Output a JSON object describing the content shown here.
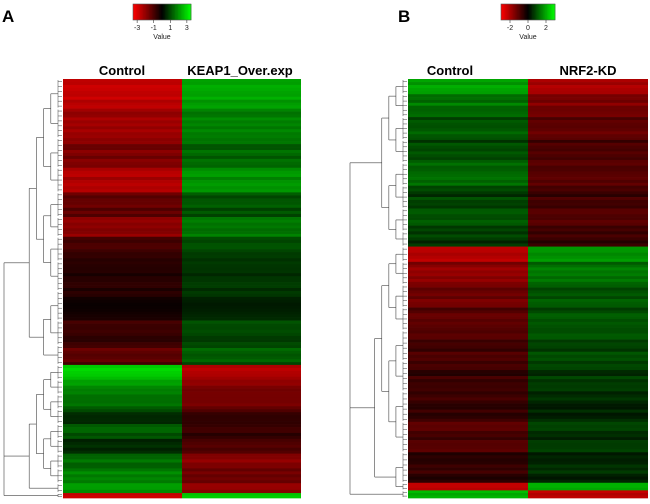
{
  "chart_data": [
    {
      "type": "heatmap",
      "panel": "A",
      "columns": [
        "Control",
        "KEAP1_Over.exp"
      ],
      "colorbar": {
        "title": "Value",
        "ticks": [
          "-3",
          "-1",
          "1",
          "3"
        ],
        "tick_values": [
          -3,
          -1,
          1,
          3
        ],
        "range": [
          -3.5,
          3.5
        ],
        "colors": {
          "low": "#ff0000",
          "mid": "#000000",
          "high": "#00ff00"
        }
      },
      "clusters": [
        {
          "control": -2.6,
          "treated": 2.2,
          "weight": 6
        },
        {
          "control": -2.1,
          "treated": 1.7,
          "weight": 6
        },
        {
          "control": -1.7,
          "treated": 1.4,
          "weight": 6
        },
        {
          "control": -2.4,
          "treated": 2.0,
          "weight": 5
        },
        {
          "control": -1.3,
          "treated": 1.1,
          "weight": 5
        },
        {
          "control": -1.9,
          "treated": 1.6,
          "weight": 4
        },
        {
          "control": -0.8,
          "treated": 0.9,
          "weight": 5
        },
        {
          "control": -0.5,
          "treated": 0.7,
          "weight": 6
        },
        {
          "control": -0.4,
          "treated": 0.6,
          "weight": 6
        },
        {
          "control": -0.7,
          "treated": 0.9,
          "weight": 5
        },
        {
          "control": -1.2,
          "treated": 1.2,
          "weight": 4
        },
        {
          "control": 2.8,
          "treated": -2.4,
          "weight": 3
        },
        {
          "control": 2.0,
          "treated": -1.8,
          "weight": 3
        },
        {
          "control": 1.4,
          "treated": -1.5,
          "weight": 3
        },
        {
          "control": 0.8,
          "treated": -0.9,
          "weight": 3
        },
        {
          "control": 1.2,
          "treated": -0.7,
          "weight": 3
        },
        {
          "control": 0.7,
          "treated": -1.2,
          "weight": 3
        },
        {
          "control": 1.5,
          "treated": -1.9,
          "weight": 3
        },
        {
          "control": 1.9,
          "treated": -1.6,
          "weight": 3
        },
        {
          "control": 2.2,
          "treated": -2.1,
          "weight": 2
        },
        {
          "control": -2.8,
          "treated": 2.8,
          "weight": 1
        }
      ]
    },
    {
      "type": "heatmap",
      "panel": "B",
      "columns": [
        "Control",
        "NRF2-KD"
      ],
      "colorbar": {
        "title": "Value",
        "ticks": [
          "-2",
          "0",
          "2"
        ],
        "tick_values": [
          -2,
          0,
          2
        ],
        "range": [
          -3,
          3
        ],
        "colors": {
          "low": "#ff0000",
          "mid": "#000000",
          "high": "#00ff00"
        }
      },
      "clusters": [
        {
          "control": 1.8,
          "treated": -1.9,
          "weight": 2
        },
        {
          "control": 1.4,
          "treated": -1.5,
          "weight": 3
        },
        {
          "control": 1.0,
          "treated": -1.1,
          "weight": 3
        },
        {
          "control": 0.8,
          "treated": -0.8,
          "weight": 3
        },
        {
          "control": 1.1,
          "treated": -0.9,
          "weight": 3
        },
        {
          "control": 0.7,
          "treated": -0.7,
          "weight": 3
        },
        {
          "control": 0.9,
          "treated": -0.9,
          "weight": 3
        },
        {
          "control": 0.6,
          "treated": -0.6,
          "weight": 2
        },
        {
          "control": -2.0,
          "treated": 1.6,
          "weight": 2
        },
        {
          "control": -1.6,
          "treated": 1.3,
          "weight": 3
        },
        {
          "control": -1.3,
          "treated": 1.0,
          "weight": 3
        },
        {
          "control": -1.0,
          "treated": 0.9,
          "weight": 3
        },
        {
          "control": -0.8,
          "treated": 0.8,
          "weight": 4
        },
        {
          "control": -0.6,
          "treated": 0.6,
          "weight": 4
        },
        {
          "control": -0.7,
          "treated": 0.5,
          "weight": 4
        },
        {
          "control": -0.9,
          "treated": 0.6,
          "weight": 4
        },
        {
          "control": -0.6,
          "treated": 0.5,
          "weight": 4
        },
        {
          "control": -2.2,
          "treated": 2.0,
          "weight": 1
        },
        {
          "control": 2.2,
          "treated": -2.3,
          "weight": 1
        }
      ]
    }
  ]
}
